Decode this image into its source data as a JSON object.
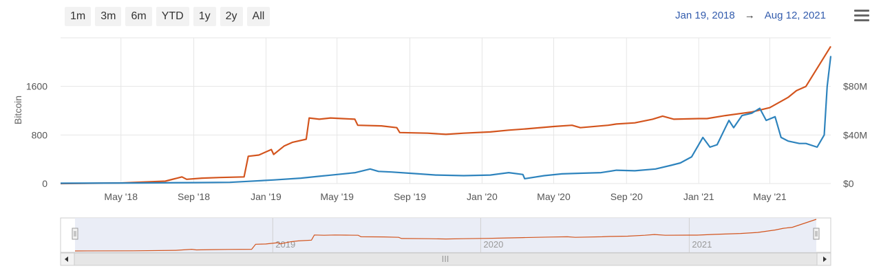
{
  "range_selector": {
    "buttons": [
      "1m",
      "3m",
      "6m",
      "YTD",
      "1y",
      "2y",
      "All"
    ]
  },
  "date_range": {
    "from": "Jan 19, 2018",
    "arrow": "→",
    "to": "Aug 12, 2021"
  },
  "menu_icon": "hamburger-icon",
  "colors": {
    "orange": "#d3541d",
    "blue": "#2d83bd",
    "navigator_bg": "#e6eaf5",
    "grid": "#e6e6e6",
    "accent_text": "#335cad"
  },
  "chart_data": {
    "type": "line",
    "x_range": [
      "2018-01-19",
      "2021-08-12"
    ],
    "xticks": [
      "May '18",
      "Sep '18",
      "Jan '19",
      "May '19",
      "Sep '19",
      "Jan '20",
      "May '20",
      "Sep '20",
      "Jan '21",
      "May '21"
    ],
    "y_left": {
      "title": "Bitcoin",
      "ticks": [
        "0",
        "800",
        "1600"
      ],
      "range": [
        0,
        2400
      ]
    },
    "y_right": {
      "ticks": [
        "$0",
        "$40M",
        "$80M"
      ],
      "range": [
        0,
        120
      ]
    },
    "series": [
      {
        "axis": "left",
        "color": "#d3541d",
        "points": [
          [
            "2018-01-19",
            0
          ],
          [
            "2018-05-01",
            10
          ],
          [
            "2018-07-15",
            40
          ],
          [
            "2018-08-12",
            110
          ],
          [
            "2018-08-20",
            70
          ],
          [
            "2018-09-15",
            90
          ],
          [
            "2018-10-15",
            100
          ],
          [
            "2018-11-25",
            110
          ],
          [
            "2018-12-02",
            450
          ],
          [
            "2018-12-20",
            470
          ],
          [
            "2019-01-10",
            560
          ],
          [
            "2019-01-14",
            480
          ],
          [
            "2019-02-01",
            620
          ],
          [
            "2019-02-15",
            680
          ],
          [
            "2019-03-10",
            730
          ],
          [
            "2019-03-15",
            1080
          ],
          [
            "2019-04-01",
            1060
          ],
          [
            "2019-04-20",
            1080
          ],
          [
            "2019-05-10",
            1070
          ],
          [
            "2019-05-31",
            1060
          ],
          [
            "2019-06-05",
            960
          ],
          [
            "2019-07-15",
            950
          ],
          [
            "2019-08-10",
            920
          ],
          [
            "2019-08-15",
            840
          ],
          [
            "2019-10-01",
            830
          ],
          [
            "2019-11-01",
            810
          ],
          [
            "2019-12-01",
            830
          ],
          [
            "2020-01-15",
            850
          ],
          [
            "2020-02-15",
            880
          ],
          [
            "2020-03-15",
            900
          ],
          [
            "2020-05-01",
            940
          ],
          [
            "2020-06-01",
            960
          ],
          [
            "2020-06-15",
            920
          ],
          [
            "2020-08-01",
            960
          ],
          [
            "2020-08-15",
            980
          ],
          [
            "2020-09-15",
            1000
          ],
          [
            "2020-10-15",
            1060
          ],
          [
            "2020-11-01",
            1110
          ],
          [
            "2020-11-20",
            1060
          ],
          [
            "2021-01-01",
            1070
          ],
          [
            "2021-01-15",
            1070
          ],
          [
            "2021-02-15",
            1120
          ],
          [
            "2021-04-01",
            1180
          ],
          [
            "2021-05-01",
            1250
          ],
          [
            "2021-06-01",
            1420
          ],
          [
            "2021-06-15",
            1530
          ],
          [
            "2021-07-01",
            1600
          ],
          [
            "2021-08-12",
            2260
          ]
        ]
      },
      {
        "axis": "right",
        "color": "#2d83bd",
        "points": [
          [
            "2018-01-19",
            0.3
          ],
          [
            "2018-06-01",
            0.5
          ],
          [
            "2018-09-01",
            0.8
          ],
          [
            "2018-11-01",
            1
          ],
          [
            "2018-12-01",
            1.8
          ],
          [
            "2019-01-15",
            3
          ],
          [
            "2019-03-01",
            4.5
          ],
          [
            "2019-04-01",
            6
          ],
          [
            "2019-05-01",
            7.5
          ],
          [
            "2019-06-01",
            9
          ],
          [
            "2019-06-26",
            12
          ],
          [
            "2019-07-10",
            10
          ],
          [
            "2019-08-01",
            9.5
          ],
          [
            "2019-09-01",
            8.5
          ],
          [
            "2019-10-15",
            7
          ],
          [
            "2019-12-01",
            6.5
          ],
          [
            "2020-01-15",
            7
          ],
          [
            "2020-02-15",
            9
          ],
          [
            "2020-03-10",
            7.5
          ],
          [
            "2020-03-13",
            4
          ],
          [
            "2020-04-15",
            6.5
          ],
          [
            "2020-05-15",
            8
          ],
          [
            "2020-06-15",
            8.5
          ],
          [
            "2020-07-20",
            9
          ],
          [
            "2020-08-15",
            11
          ],
          [
            "2020-09-15",
            10.5
          ],
          [
            "2020-10-20",
            12
          ],
          [
            "2020-11-15",
            15
          ],
          [
            "2020-12-01",
            17
          ],
          [
            "2020-12-20",
            22
          ],
          [
            "2021-01-08",
            38
          ],
          [
            "2021-01-20",
            30
          ],
          [
            "2021-02-01",
            32
          ],
          [
            "2021-02-15",
            46
          ],
          [
            "2021-02-21",
            52
          ],
          [
            "2021-03-01",
            46
          ],
          [
            "2021-03-15",
            56
          ],
          [
            "2021-04-01",
            58
          ],
          [
            "2021-04-14",
            62
          ],
          [
            "2021-04-25",
            52
          ],
          [
            "2021-05-10",
            55
          ],
          [
            "2021-05-20",
            38
          ],
          [
            "2021-06-01",
            35
          ],
          [
            "2021-06-20",
            33
          ],
          [
            "2021-07-01",
            33
          ],
          [
            "2021-07-20",
            30
          ],
          [
            "2021-08-01",
            40
          ],
          [
            "2021-08-06",
            80
          ],
          [
            "2021-08-12",
            105
          ]
        ]
      }
    ]
  },
  "navigator": {
    "labels": [
      "2019",
      "2020",
      "2021"
    ],
    "scrollbar_grip": "III"
  }
}
